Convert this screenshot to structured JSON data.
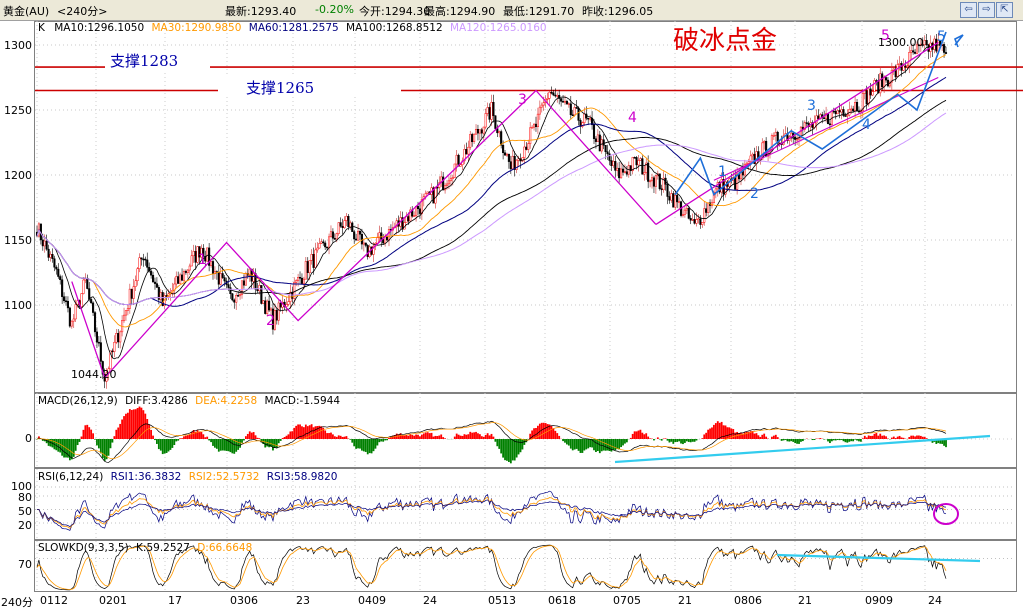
{
  "header": {
    "symbol": "黄金(AU)",
    "period": "<240分>",
    "latest_label": "最新:1293.40",
    "change": "-0.20%",
    "open_label": "今开:1294.30",
    "high_label": "最高:1294.90",
    "low_label": "最低:1291.70",
    "prev_close_label": "昨收:1296.05",
    "nav_prev": "⇦",
    "nav_next": "⇨",
    "nav_expand": "⇱"
  },
  "main_panel": {
    "indicator_name": "K",
    "ma10": "MA10:1296.1050",
    "ma30": "MA30:1290.9850",
    "ma60": "MA60:1281.2575",
    "ma100": "MA100:1268.8512",
    "ma120": "MA120:1265.0160",
    "title_overlay": "破冰点金",
    "support_upper_label": "支撑1283",
    "support_lower_label": "支撑1265",
    "high_marker": "1300.00",
    "low_marker": "1044.20",
    "wave_labels": [
      "1",
      "2",
      "3",
      "4",
      "5"
    ],
    "uptrend_labels": [
      "1",
      "2",
      "3",
      "4",
      "5"
    ]
  },
  "macd_panel": {
    "name": "MACD(26,12,9)",
    "diff": "DIFF:3.4286",
    "dea": "DEA:4.2258",
    "macd": "MACD:-1.5944",
    "zero_label": "0"
  },
  "rsi_panel": {
    "name": "RSI(6,12,24)",
    "rsi1": "RSI1:36.3832",
    "rsi2": "RSI2:52.5732",
    "rsi3": "RSI3:58.9820",
    "levels": [
      "100",
      "80",
      "50",
      "20"
    ]
  },
  "kd_panel": {
    "name": "SLOWKD(9,3,3,5)",
    "k": "K:59.2527",
    "d": "D:66.6648",
    "level": "70"
  },
  "footer": {
    "period": "240分"
  },
  "colors": {
    "up": "#ff0000",
    "down": "#008000",
    "ma10": "#000000",
    "ma30": "#ff9900",
    "ma60": "#000080",
    "ma100": "#000000",
    "ma120": "#cc99ff",
    "wave": "#cc00cc",
    "trend_blue": "#1e6fd9",
    "cyan": "#33ccee",
    "support": "#cc0000"
  },
  "chart_data": {
    "type": "candlestick",
    "y_axis_ticks": [
      1100,
      1150,
      1200,
      1250,
      1300
    ],
    "x_tick_labels": [
      "0112",
      "0201",
      "17",
      "0306",
      "23",
      "0409",
      "24",
      "0513",
      "0618",
      "0705",
      "21",
      "0806",
      "21",
      "0909",
      "24"
    ],
    "support_levels": [
      1283,
      1265
    ],
    "price_path_anchors": [
      {
        "i": 0,
        "p": 1160
      },
      {
        "i": 10,
        "p": 1125
      },
      {
        "i": 18,
        "p": 1085
      },
      {
        "i": 25,
        "p": 1118
      },
      {
        "i": 35,
        "p": 1044.2
      },
      {
        "i": 55,
        "p": 1140
      },
      {
        "i": 65,
        "p": 1100
      },
      {
        "i": 85,
        "p": 1145
      },
      {
        "i": 100,
        "p": 1105
      },
      {
        "i": 110,
        "p": 1125
      },
      {
        "i": 122,
        "p": 1088
      },
      {
        "i": 140,
        "p": 1130
      },
      {
        "i": 160,
        "p": 1165
      },
      {
        "i": 170,
        "p": 1140
      },
      {
        "i": 185,
        "p": 1160
      },
      {
        "i": 205,
        "p": 1185
      },
      {
        "i": 220,
        "p": 1215
      },
      {
        "i": 235,
        "p": 1250
      },
      {
        "i": 245,
        "p": 1205
      },
      {
        "i": 258,
        "p": 1238
      },
      {
        "i": 265,
        "p": 1265
      },
      {
        "i": 275,
        "p": 1248
      },
      {
        "i": 285,
        "p": 1240
      },
      {
        "i": 300,
        "p": 1200
      },
      {
        "i": 310,
        "p": 1210
      },
      {
        "i": 325,
        "p": 1190
      },
      {
        "i": 340,
        "p": 1160
      },
      {
        "i": 352,
        "p": 1190
      },
      {
        "i": 362,
        "p": 1195
      },
      {
        "i": 372,
        "p": 1215
      },
      {
        "i": 385,
        "p": 1230
      },
      {
        "i": 395,
        "p": 1235
      },
      {
        "i": 405,
        "p": 1240
      },
      {
        "i": 415,
        "p": 1250
      },
      {
        "i": 425,
        "p": 1255
      },
      {
        "i": 435,
        "p": 1270
      },
      {
        "i": 445,
        "p": 1280
      },
      {
        "i": 455,
        "p": 1295
      },
      {
        "i": 465,
        "p": 1300
      },
      {
        "i": 470,
        "p": 1293.4
      }
    ],
    "ma_values_last": {
      "MA10": 1296.105,
      "MA30": 1290.985,
      "MA60": 1281.2575,
      "MA100": 1268.8512,
      "MA120": 1265.016
    },
    "macd_last": {
      "DIFF": 3.4286,
      "DEA": 4.2258,
      "MACD": -1.5944
    },
    "rsi_last": {
      "RSI1": 36.3832,
      "RSI2": 52.5732,
      "RSI3": 58.982
    },
    "kd_last": {
      "K": 59.2527,
      "D": 66.6648
    }
  }
}
